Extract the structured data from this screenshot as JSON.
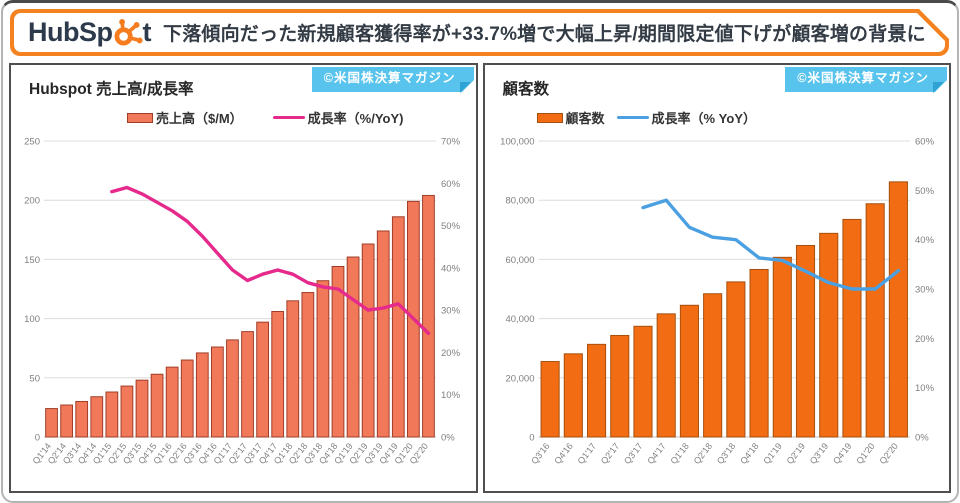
{
  "header": {
    "logo_prefix": "HubSp",
    "logo_suffix": "t",
    "headline": "下落傾向だった新規顧客獲得率が+33.7%増で大幅上昇/期間限定値下げが顧客増の背景に"
  },
  "watermark": "©米国株決算マガジン",
  "colors": {
    "header_orange": "#f58220",
    "logo_navy": "#2c3a4b",
    "badge_blue": "#58c3ec",
    "panel_border": "#4f4f4f",
    "gridline": "#dcdcdc",
    "tick_text": "#7f7f7f",
    "revenue_bar_fill": "#f1795a",
    "revenue_bar_border": "#a03d28",
    "revenue_growth_line": "#e52a8c",
    "customer_bar_fill": "#f16c13",
    "customer_bar_border": "#a6500e",
    "customer_growth_line": "#4ba0e2"
  },
  "chart_data": [
    {
      "type": "bar+line",
      "title": "Hubspot 売上高/成長率",
      "legend_position": "top",
      "grid": true,
      "categories": [
        "Q1'14",
        "Q2'14",
        "Q3'14",
        "Q4'14",
        "Q1'15",
        "Q2'15",
        "Q3'15",
        "Q4'15",
        "Q1'16",
        "Q2'16",
        "Q3'16",
        "Q4'16",
        "Q1'17",
        "Q2'17",
        "Q3'17",
        "Q4'17",
        "Q1'18",
        "Q2'18",
        "Q3'18",
        "Q4'18",
        "Q1'19",
        "Q2'19",
        "Q3'19",
        "Q4'19",
        "Q1'20",
        "Q2'20"
      ],
      "series": [
        {
          "name": "売上高（$/M）",
          "type": "bar",
          "axis": "left",
          "color": "#f1795a",
          "border": "#a03d28",
          "values": [
            24,
            27,
            30,
            34,
            38,
            43,
            48,
            53,
            59,
            65,
            71,
            76,
            82,
            89,
            97,
            106,
            115,
            122,
            132,
            144,
            152,
            163,
            174,
            186,
            199,
            204
          ]
        },
        {
          "name": "成長率（%/YoY)",
          "type": "line",
          "axis": "right",
          "color": "#e52a8c",
          "values": [
            null,
            null,
            null,
            null,
            58,
            59,
            57.5,
            55.5,
            53.5,
            51,
            47.5,
            43.5,
            39.5,
            37,
            38.5,
            39.5,
            38.5,
            36.5,
            35.5,
            35,
            32.5,
            30,
            30.5,
            31.5,
            28,
            24.5
          ]
        }
      ],
      "left_axis": {
        "min": 0,
        "max": 250,
        "tick_values": [
          0,
          50,
          100,
          150,
          200,
          250
        ],
        "ticks": [
          "0",
          "50",
          "100",
          "150",
          "200",
          "250"
        ]
      },
      "right_axis": {
        "min": 0,
        "max": 70,
        "tick_values": [
          0,
          10,
          20,
          30,
          40,
          50,
          60,
          70
        ],
        "ticks": [
          "0%",
          "10%",
          "20%",
          "30%",
          "40%",
          "50%",
          "60%",
          "70%"
        ]
      }
    },
    {
      "type": "bar+line",
      "title": "顧客数",
      "legend_position": "top",
      "grid": true,
      "categories": [
        "Q3'16",
        "Q4'16",
        "Q1'17",
        "Q2'17",
        "Q3'17",
        "Q4'17",
        "Q1'18",
        "Q2'18",
        "Q3'18",
        "Q4'18",
        "Q1'19",
        "Q2'19",
        "Q3'19",
        "Q4'19",
        "Q1'20",
        "Q2'20"
      ],
      "series": [
        {
          "name": "顧客数",
          "type": "bar",
          "axis": "left",
          "color": "#f16c13",
          "border": "#a6500e",
          "values": [
            25500,
            28100,
            31300,
            34300,
            37400,
            41600,
            44500,
            48400,
            52400,
            56600,
            60700,
            64700,
            68800,
            73500,
            78800,
            86200
          ]
        },
        {
          "name": "成長率（% YoY）",
          "type": "line",
          "axis": "right",
          "color": "#4ba0e2",
          "values": [
            null,
            null,
            null,
            null,
            46.5,
            48,
            42.5,
            40.5,
            40,
            36.3,
            35.8,
            33.6,
            31.3,
            30,
            30,
            33.7
          ]
        }
      ],
      "left_axis": {
        "min": 0,
        "max": 100000,
        "tick_values": [
          0,
          20000,
          40000,
          60000,
          80000,
          100000
        ],
        "ticks": [
          "0",
          "20,000",
          "40,000",
          "60,000",
          "80,000",
          "100,000"
        ]
      },
      "right_axis": {
        "min": 0,
        "max": 60,
        "tick_values": [
          0,
          10,
          20,
          30,
          40,
          50,
          60
        ],
        "ticks": [
          "0%",
          "10%",
          "20%",
          "30%",
          "40%",
          "50%",
          "60%"
        ]
      }
    }
  ]
}
